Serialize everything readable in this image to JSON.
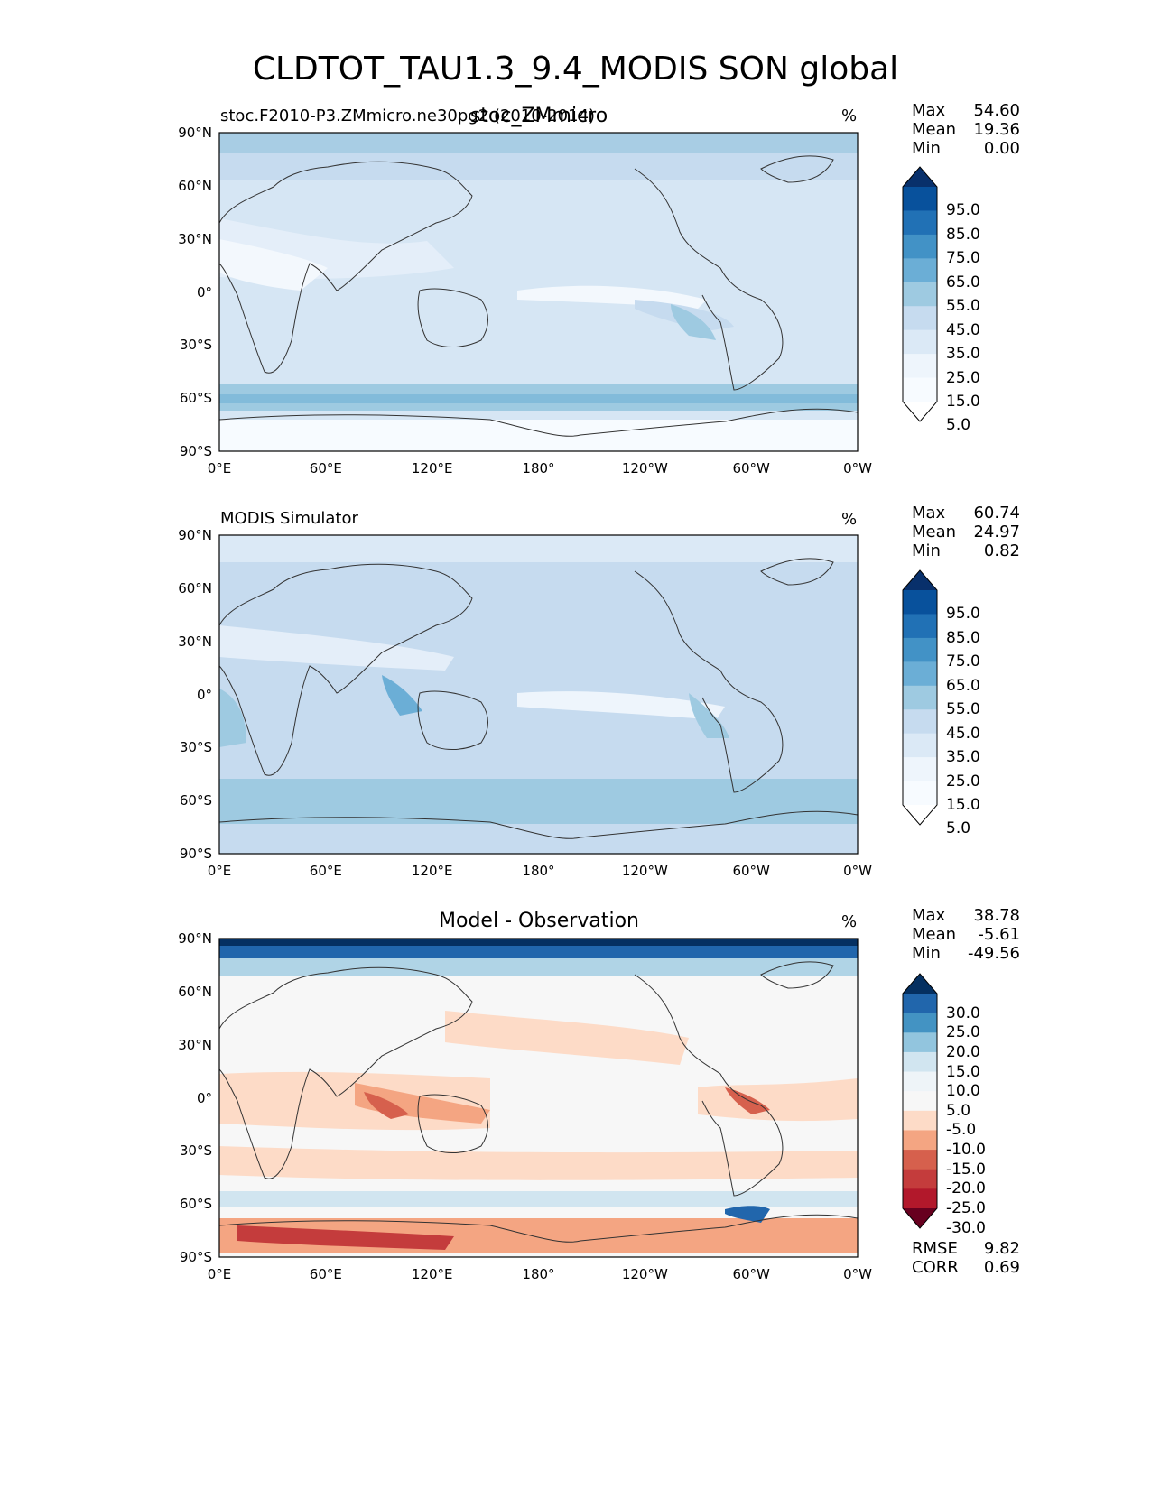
{
  "title": "CLDTOT_TAU1.3_9.4_MODIS SON global",
  "x_ticks": [
    "0°E",
    "60°E",
    "120°E",
    "180°",
    "120°W",
    "60°W",
    "0°W"
  ],
  "y_ticks": [
    "90°N",
    "60°N",
    "30°N",
    "0°",
    "30°S",
    "60°S",
    "90°S"
  ],
  "panels": [
    {
      "left_label": "stoc.F2010-P3.ZMmicro.ne30pg2 (2010-2014)",
      "center_label": "stoc_ZMmicro",
      "units": "%",
      "stats": [
        {
          "label": "Max",
          "value": "54.60"
        },
        {
          "label": "Mean",
          "value": "19.36"
        },
        {
          "label": "Min",
          "value": "0.00"
        }
      ],
      "colorbar_labels": [
        "95.0",
        "85.0",
        "75.0",
        "65.0",
        "55.0",
        "45.0",
        "35.0",
        "25.0",
        "15.0",
        "5.0"
      ],
      "colorbar_colors": [
        "#08306b",
        "#08519c",
        "#2171b5",
        "#4292c6",
        "#6baed6",
        "#9ecae1",
        "#c6dbef",
        "#dbe9f6",
        "#eef5fc",
        "#f7fbff",
        "#ffffff"
      ]
    },
    {
      "left_label": "MODIS Simulator",
      "center_label": "",
      "units": "%",
      "stats": [
        {
          "label": "Max",
          "value": "60.74"
        },
        {
          "label": "Mean",
          "value": "24.97"
        },
        {
          "label": "Min",
          "value": "0.82"
        }
      ],
      "colorbar_labels": [
        "95.0",
        "85.0",
        "75.0",
        "65.0",
        "55.0",
        "45.0",
        "35.0",
        "25.0",
        "15.0",
        "5.0"
      ],
      "colorbar_colors": [
        "#08306b",
        "#08519c",
        "#2171b5",
        "#4292c6",
        "#6baed6",
        "#9ecae1",
        "#c6dbef",
        "#dbe9f6",
        "#eef5fc",
        "#f7fbff",
        "#ffffff"
      ]
    },
    {
      "left_label": "",
      "center_label": "Model - Observation",
      "units": "%",
      "stats": [
        {
          "label": "Max",
          "value": "38.78"
        },
        {
          "label": "Mean",
          "value": "-5.61"
        },
        {
          "label": "Min",
          "value": "-49.56"
        }
      ],
      "colorbar_labels": [
        "30.0",
        "25.0",
        "20.0",
        "15.0",
        "10.0",
        "5.0",
        "-5.0",
        "-10.0",
        "-15.0",
        "-20.0",
        "-25.0",
        "-30.0"
      ],
      "colorbar_colors": [
        "#053061",
        "#2166ac",
        "#4393c3",
        "#92c5de",
        "#d1e5f0",
        "#eef4f8",
        "#f7f7f7",
        "#fddbc7",
        "#f4a582",
        "#d6604d",
        "#c43c3c",
        "#b2182b",
        "#67001f"
      ],
      "footer_stats": [
        {
          "label": "RMSE",
          "value": "9.82"
        },
        {
          "label": "CORR",
          "value": "0.69"
        }
      ]
    }
  ]
}
